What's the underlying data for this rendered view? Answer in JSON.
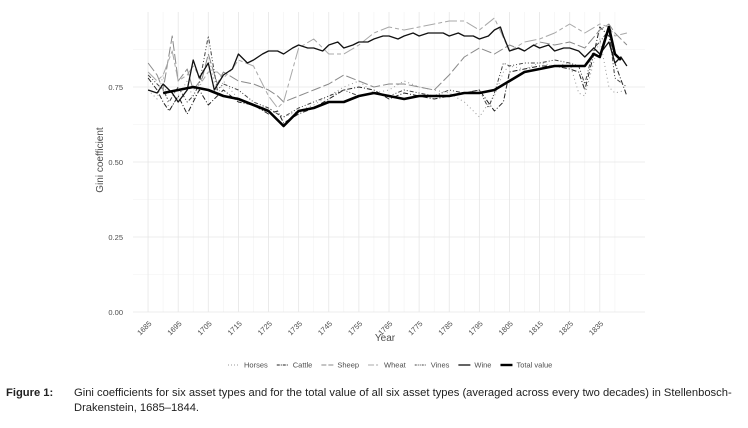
{
  "chart_data": {
    "type": "line",
    "xlabel": "Year",
    "ylabel": "Gini coefficient",
    "xlim": [
      1680,
      1850
    ],
    "ylim": [
      0,
      1.0
    ],
    "x_ticks": [
      1685,
      1695,
      1705,
      1715,
      1725,
      1735,
      1745,
      1755,
      1765,
      1775,
      1785,
      1795,
      1805,
      1815,
      1825,
      1835
    ],
    "y_ticks": [
      0.0,
      0.25,
      0.5,
      0.75
    ],
    "y_tick_labels": [
      "0.00",
      "0.25",
      "0.50",
      "0.75"
    ],
    "grid": true,
    "legend_position": "bottom",
    "series": [
      {
        "name": "Horses",
        "dash": "1,3",
        "width": 1,
        "x": [
          1685,
          1688,
          1690,
          1692,
          1695,
          1698,
          1700,
          1702,
          1705,
          1708,
          1710,
          1715,
          1720,
          1725,
          1728,
          1730,
          1735,
          1740,
          1745,
          1750,
          1755,
          1760,
          1765,
          1770,
          1775,
          1780,
          1785,
          1790,
          1795,
          1797,
          1800,
          1803,
          1805,
          1810,
          1815,
          1820,
          1825,
          1828,
          1830,
          1835,
          1838,
          1840,
          1844
        ],
        "y": [
          0.74,
          0.71,
          0.79,
          0.67,
          0.72,
          0.77,
          0.71,
          0.74,
          0.86,
          0.72,
          0.77,
          0.71,
          0.69,
          0.68,
          0.66,
          0.65,
          0.67,
          0.69,
          0.72,
          0.75,
          0.77,
          0.73,
          0.74,
          0.77,
          0.75,
          0.74,
          0.73,
          0.7,
          0.65,
          0.68,
          0.72,
          0.8,
          0.82,
          0.81,
          0.83,
          0.82,
          0.83,
          0.73,
          0.72,
          0.91,
          0.75,
          0.73,
          0.74
        ]
      },
      {
        "name": "Cattle",
        "dash": "5,2,1,2",
        "width": 1,
        "x": [
          1685,
          1688,
          1690,
          1692,
          1695,
          1698,
          1700,
          1702,
          1705,
          1708,
          1710,
          1715,
          1720,
          1725,
          1728,
          1730,
          1735,
          1740,
          1745,
          1750,
          1755,
          1760,
          1765,
          1770,
          1775,
          1780,
          1785,
          1790,
          1795,
          1800,
          1803,
          1805,
          1810,
          1815,
          1820,
          1825,
          1828,
          1830,
          1833,
          1835,
          1838,
          1840,
          1844
        ],
        "y": [
          0.78,
          0.74,
          0.7,
          0.67,
          0.72,
          0.66,
          0.7,
          0.74,
          0.69,
          0.72,
          0.74,
          0.7,
          0.69,
          0.66,
          0.67,
          0.63,
          0.66,
          0.68,
          0.71,
          0.74,
          0.75,
          0.74,
          0.71,
          0.73,
          0.72,
          0.71,
          0.72,
          0.73,
          0.74,
          0.67,
          0.7,
          0.8,
          0.81,
          0.82,
          0.82,
          0.81,
          0.8,
          0.74,
          0.86,
          0.95,
          0.92,
          0.83,
          0.72
        ]
      },
      {
        "name": "Sheep",
        "dash": "10,3",
        "width": 1,
        "x": [
          1685,
          1688,
          1690,
          1693,
          1695,
          1698,
          1700,
          1703,
          1705,
          1708,
          1710,
          1715,
          1720,
          1725,
          1728,
          1730,
          1735,
          1740,
          1745,
          1750,
          1755,
          1760,
          1765,
          1770,
          1775,
          1780,
          1785,
          1790,
          1795,
          1800,
          1805,
          1810,
          1815,
          1820,
          1825,
          1830,
          1835,
          1838,
          1840,
          1844
        ],
        "y": [
          0.83,
          0.79,
          0.74,
          0.92,
          0.77,
          0.81,
          0.74,
          0.78,
          0.86,
          0.76,
          0.8,
          0.77,
          0.76,
          0.74,
          0.72,
          0.7,
          0.72,
          0.74,
          0.76,
          0.79,
          0.77,
          0.75,
          0.76,
          0.76,
          0.75,
          0.74,
          0.79,
          0.85,
          0.88,
          0.86,
          0.89,
          0.87,
          0.9,
          0.89,
          0.9,
          0.88,
          0.94,
          0.96,
          0.93,
          0.89
        ]
      },
      {
        "name": "Wheat",
        "dash": "12,3,4,3",
        "width": 1,
        "x": [
          1685,
          1688,
          1690,
          1693,
          1695,
          1698,
          1700,
          1703,
          1705,
          1708,
          1710,
          1713,
          1715,
          1720,
          1725,
          1728,
          1730,
          1735,
          1740,
          1745,
          1750,
          1755,
          1760,
          1765,
          1770,
          1775,
          1780,
          1785,
          1790,
          1795,
          1800,
          1805,
          1810,
          1815,
          1820,
          1825,
          1830,
          1835,
          1838,
          1840,
          1844
        ],
        "y": [
          0.8,
          0.77,
          0.79,
          0.87,
          0.77,
          0.79,
          0.82,
          0.77,
          0.8,
          0.8,
          0.78,
          0.81,
          0.84,
          0.82,
          0.72,
          0.68,
          0.7,
          0.88,
          0.91,
          0.86,
          0.86,
          0.89,
          0.93,
          0.95,
          0.94,
          0.95,
          0.96,
          0.97,
          0.97,
          0.94,
          0.98,
          0.87,
          0.9,
          0.91,
          0.93,
          0.96,
          0.93,
          0.96,
          0.95,
          0.92,
          0.93
        ]
      },
      {
        "name": "Vines",
        "dash": "4,2,1,2,1,2",
        "width": 1,
        "x": [
          1685,
          1688,
          1690,
          1692,
          1695,
          1698,
          1700,
          1702,
          1705,
          1708,
          1710,
          1715,
          1720,
          1725,
          1728,
          1730,
          1735,
          1740,
          1745,
          1750,
          1755,
          1760,
          1765,
          1770,
          1775,
          1780,
          1785,
          1790,
          1795,
          1798,
          1800,
          1803,
          1805,
          1810,
          1815,
          1820,
          1825,
          1828,
          1830,
          1833,
          1835,
          1838,
          1840,
          1844
        ],
        "y": [
          0.79,
          0.76,
          0.74,
          0.7,
          0.75,
          0.7,
          0.72,
          0.76,
          0.92,
          0.74,
          0.76,
          0.74,
          0.7,
          0.68,
          0.66,
          0.65,
          0.68,
          0.7,
          0.72,
          0.74,
          0.72,
          0.73,
          0.72,
          0.74,
          0.73,
          0.72,
          0.74,
          0.73,
          0.74,
          0.68,
          0.73,
          0.83,
          0.82,
          0.83,
          0.83,
          0.84,
          0.83,
          0.82,
          0.76,
          0.88,
          0.9,
          0.94,
          0.78,
          0.75
        ]
      },
      {
        "name": "Wine",
        "dash": "",
        "width": 1.3,
        "x": [
          1685,
          1688,
          1690,
          1693,
          1695,
          1698,
          1700,
          1702,
          1705,
          1707,
          1710,
          1713,
          1715,
          1718,
          1720,
          1723,
          1725,
          1728,
          1730,
          1733,
          1735,
          1738,
          1740,
          1743,
          1745,
          1748,
          1750,
          1753,
          1755,
          1758,
          1760,
          1763,
          1765,
          1768,
          1770,
          1773,
          1775,
          1778,
          1780,
          1783,
          1785,
          1788,
          1790,
          1793,
          1795,
          1798,
          1800,
          1802,
          1803,
          1805,
          1808,
          1810,
          1813,
          1815,
          1818,
          1820,
          1823,
          1825,
          1828,
          1830,
          1833,
          1835,
          1838,
          1840,
          1842,
          1844
        ],
        "y": [
          0.74,
          0.73,
          0.76,
          0.73,
          0.7,
          0.74,
          0.84,
          0.78,
          0.83,
          0.74,
          0.79,
          0.81,
          0.86,
          0.83,
          0.84,
          0.86,
          0.87,
          0.87,
          0.86,
          0.88,
          0.89,
          0.88,
          0.88,
          0.87,
          0.89,
          0.9,
          0.88,
          0.89,
          0.9,
          0.9,
          0.91,
          0.92,
          0.92,
          0.91,
          0.92,
          0.93,
          0.92,
          0.93,
          0.93,
          0.93,
          0.92,
          0.93,
          0.92,
          0.92,
          0.91,
          0.92,
          0.94,
          0.95,
          0.92,
          0.87,
          0.88,
          0.87,
          0.89,
          0.88,
          0.89,
          0.87,
          0.88,
          0.88,
          0.87,
          0.85,
          0.88,
          0.86,
          0.9,
          0.83,
          0.85,
          0.82
        ]
      },
      {
        "name": "Total value",
        "dash": "",
        "width": 2.6,
        "x": [
          1690,
          1695,
          1700,
          1705,
          1710,
          1715,
          1720,
          1725,
          1730,
          1735,
          1740,
          1745,
          1750,
          1755,
          1760,
          1765,
          1770,
          1775,
          1780,
          1785,
          1790,
          1795,
          1800,
          1805,
          1810,
          1815,
          1820,
          1825,
          1830,
          1833,
          1835,
          1838,
          1840,
          1842
        ],
        "y": [
          0.73,
          0.74,
          0.75,
          0.74,
          0.72,
          0.71,
          0.69,
          0.67,
          0.62,
          0.67,
          0.68,
          0.7,
          0.7,
          0.72,
          0.73,
          0.72,
          0.71,
          0.72,
          0.72,
          0.72,
          0.73,
          0.73,
          0.74,
          0.77,
          0.8,
          0.81,
          0.82,
          0.82,
          0.82,
          0.86,
          0.85,
          0.95,
          0.86,
          0.84
        ]
      }
    ]
  },
  "caption": {
    "label": "Figure 1:",
    "text": "Gini coefficients for six asset types and for the total value of all six asset types (averaged across every two decades) in Stellenbosch-Drakenstein, 1685–1844."
  }
}
